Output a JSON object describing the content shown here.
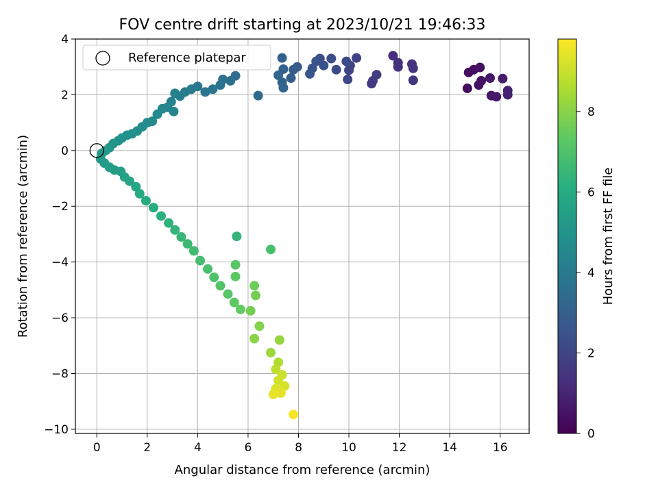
{
  "chart_data": {
    "type": "scatter",
    "title": "FOV centre drift starting at 2023/10/21 19:46:33",
    "xlabel": "Angular distance from reference (arcmin)",
    "ylabel": "Rotation from reference (arcmin)",
    "xlim": [
      -0.85,
      17.15
    ],
    "ylim": [
      -10.15,
      4.0
    ],
    "xticks": [
      0,
      2,
      4,
      6,
      8,
      10,
      12,
      14,
      16
    ],
    "yticks": [
      4,
      2,
      0,
      -2,
      -4,
      -6,
      -8,
      -10
    ],
    "xtick_labels": [
      "0",
      "2",
      "4",
      "6",
      "8",
      "10",
      "12",
      "14",
      "16"
    ],
    "ytick_labels": [
      "4",
      "2",
      "0",
      "−2",
      "−4",
      "−6",
      "−8",
      "−10"
    ],
    "grid": true,
    "legend": {
      "position": "top-left",
      "entries": [
        "Reference platepar"
      ]
    },
    "reference_point": {
      "x": 0,
      "y": 0,
      "label": "Reference platepar"
    },
    "colorbar": {
      "label": "Hours from first FF file",
      "range": [
        0,
        9.8
      ],
      "ticks": [
        0,
        2,
        4,
        6,
        8
      ],
      "tick_labels": [
        "0",
        "2",
        "4",
        "6",
        "8"
      ],
      "colormap": "viridis"
    },
    "series": [
      {
        "values": [
          {
            "x": 14.7,
            "y": 2.23,
            "h": 0.3
          },
          {
            "x": 14.75,
            "y": 2.8,
            "h": 0.35
          },
          {
            "x": 14.95,
            "y": 2.9,
            "h": 0.4
          },
          {
            "x": 15.2,
            "y": 2.98,
            "h": 0.45
          },
          {
            "x": 15.15,
            "y": 2.35,
            "h": 0.45
          },
          {
            "x": 15.25,
            "y": 2.5,
            "h": 0.5
          },
          {
            "x": 15.6,
            "y": 2.6,
            "h": 0.6
          },
          {
            "x": 15.65,
            "y": 1.97,
            "h": 0.6
          },
          {
            "x": 15.85,
            "y": 1.93,
            "h": 0.7
          },
          {
            "x": 16.1,
            "y": 2.58,
            "h": 0.8
          },
          {
            "x": 16.3,
            "y": 2.15,
            "h": 0.9
          },
          {
            "x": 16.3,
            "y": 2.0,
            "h": 0.95
          },
          {
            "x": 11.75,
            "y": 3.4,
            "h": 1.3
          },
          {
            "x": 11.95,
            "y": 3.15,
            "h": 1.35
          },
          {
            "x": 11.95,
            "y": 3.0,
            "h": 1.4
          },
          {
            "x": 12.5,
            "y": 3.1,
            "h": 1.45
          },
          {
            "x": 12.55,
            "y": 2.95,
            "h": 1.5
          },
          {
            "x": 12.55,
            "y": 2.52,
            "h": 1.5
          },
          {
            "x": 10.9,
            "y": 2.4,
            "h": 1.7
          },
          {
            "x": 10.95,
            "y": 2.5,
            "h": 1.75
          },
          {
            "x": 11.1,
            "y": 2.72,
            "h": 1.8
          },
          {
            "x": 10.3,
            "y": 3.32,
            "h": 1.9
          },
          {
            "x": 10.05,
            "y": 3.05,
            "h": 2.0
          },
          {
            "x": 10.0,
            "y": 2.88,
            "h": 2.0
          },
          {
            "x": 9.95,
            "y": 2.55,
            "h": 2.1
          },
          {
            "x": 9.5,
            "y": 2.9,
            "h": 2.2
          },
          {
            "x": 9.9,
            "y": 3.2,
            "h": 2.2
          },
          {
            "x": 9.3,
            "y": 3.3,
            "h": 2.3
          },
          {
            "x": 8.85,
            "y": 3.3,
            "h": 2.4
          },
          {
            "x": 8.7,
            "y": 3.2,
            "h": 2.5
          },
          {
            "x": 8.55,
            "y": 2.95,
            "h": 2.55
          },
          {
            "x": 8.45,
            "y": 2.75,
            "h": 2.6
          },
          {
            "x": 9.0,
            "y": 3.05,
            "h": 2.5
          },
          {
            "x": 7.95,
            "y": 3.0,
            "h": 2.8
          },
          {
            "x": 7.8,
            "y": 2.9,
            "h": 2.85
          },
          {
            "x": 7.7,
            "y": 2.6,
            "h": 2.9
          },
          {
            "x": 7.35,
            "y": 3.32,
            "h": 3.0
          },
          {
            "x": 7.4,
            "y": 2.92,
            "h": 3.1
          },
          {
            "x": 7.35,
            "y": 2.45,
            "h": 3.1
          },
          {
            "x": 7.4,
            "y": 2.25,
            "h": 3.15
          },
          {
            "x": 7.2,
            "y": 2.7,
            "h": 3.2
          },
          {
            "x": 6.4,
            "y": 1.97,
            "h": 3.4
          },
          {
            "x": 5.5,
            "y": 2.68,
            "h": 3.5
          },
          {
            "x": 5.3,
            "y": 2.5,
            "h": 3.6
          },
          {
            "x": 5.0,
            "y": 2.55,
            "h": 3.65
          },
          {
            "x": 4.9,
            "y": 2.35,
            "h": 3.7
          },
          {
            "x": 4.6,
            "y": 2.2,
            "h": 3.75
          },
          {
            "x": 4.3,
            "y": 2.1,
            "h": 3.8
          },
          {
            "x": 4.0,
            "y": 2.3,
            "h": 3.9
          },
          {
            "x": 3.75,
            "y": 2.2,
            "h": 4.0
          },
          {
            "x": 3.5,
            "y": 2.1,
            "h": 4.1
          },
          {
            "x": 3.3,
            "y": 1.95,
            "h": 4.2
          },
          {
            "x": 3.1,
            "y": 2.05,
            "h": 4.25
          },
          {
            "x": 2.95,
            "y": 1.75,
            "h": 4.3
          },
          {
            "x": 3.05,
            "y": 1.4,
            "h": 4.4
          },
          {
            "x": 2.8,
            "y": 1.55,
            "h": 4.45
          },
          {
            "x": 2.6,
            "y": 1.5,
            "h": 4.5
          },
          {
            "x": 2.4,
            "y": 1.3,
            "h": 4.55
          },
          {
            "x": 2.2,
            "y": 1.05,
            "h": 4.6
          },
          {
            "x": 2.0,
            "y": 1.0,
            "h": 4.7
          },
          {
            "x": 1.8,
            "y": 0.85,
            "h": 4.75
          },
          {
            "x": 1.6,
            "y": 0.7,
            "h": 4.8
          },
          {
            "x": 1.4,
            "y": 0.6,
            "h": 4.85
          },
          {
            "x": 1.2,
            "y": 0.55,
            "h": 4.9
          },
          {
            "x": 1.0,
            "y": 0.45,
            "h": 4.95
          },
          {
            "x": 0.85,
            "y": 0.35,
            "h": 5.0
          },
          {
            "x": 0.65,
            "y": 0.25,
            "h": 5.05
          },
          {
            "x": 0.5,
            "y": 0.1,
            "h": 5.1
          },
          {
            "x": 0.35,
            "y": 0.0,
            "h": 5.15
          },
          {
            "x": 0.2,
            "y": -0.1,
            "h": 5.2
          },
          {
            "x": 0.15,
            "y": -0.3,
            "h": 5.25
          },
          {
            "x": 0.3,
            "y": -0.45,
            "h": 5.3
          },
          {
            "x": 0.5,
            "y": -0.6,
            "h": 5.35
          },
          {
            "x": 0.7,
            "y": -0.7,
            "h": 5.4
          },
          {
            "x": 0.95,
            "y": -0.75,
            "h": 5.5
          },
          {
            "x": 1.1,
            "y": -0.95,
            "h": 5.6
          },
          {
            "x": 1.3,
            "y": -1.1,
            "h": 5.7
          },
          {
            "x": 1.55,
            "y": -1.3,
            "h": 5.8
          },
          {
            "x": 1.7,
            "y": -1.55,
            "h": 5.9
          },
          {
            "x": 1.95,
            "y": -1.8,
            "h": 6.0
          },
          {
            "x": 2.25,
            "y": -2.05,
            "h": 6.1
          },
          {
            "x": 2.55,
            "y": -2.35,
            "h": 6.2
          },
          {
            "x": 2.85,
            "y": -2.6,
            "h": 6.3
          },
          {
            "x": 3.1,
            "y": -2.85,
            "h": 6.4
          },
          {
            "x": 3.35,
            "y": -3.1,
            "h": 6.5
          },
          {
            "x": 3.6,
            "y": -3.35,
            "h": 6.6
          },
          {
            "x": 3.85,
            "y": -3.6,
            "h": 6.7
          },
          {
            "x": 4.1,
            "y": -3.95,
            "h": 6.8
          },
          {
            "x": 4.4,
            "y": -4.25,
            "h": 6.9
          },
          {
            "x": 4.65,
            "y": -4.55,
            "h": 7.0
          },
          {
            "x": 4.9,
            "y": -4.85,
            "h": 7.1
          },
          {
            "x": 5.2,
            "y": -5.15,
            "h": 7.2
          },
          {
            "x": 5.45,
            "y": -5.45,
            "h": 7.3
          },
          {
            "x": 5.7,
            "y": -5.7,
            "h": 7.4
          },
          {
            "x": 5.55,
            "y": -3.08,
            "h": 6.4
          },
          {
            "x": 6.9,
            "y": -3.55,
            "h": 6.9
          },
          {
            "x": 5.5,
            "y": -4.1,
            "h": 7.2
          },
          {
            "x": 5.5,
            "y": -4.52,
            "h": 7.3
          },
          {
            "x": 6.25,
            "y": -4.85,
            "h": 7.6
          },
          {
            "x": 6.3,
            "y": -5.2,
            "h": 7.7
          },
          {
            "x": 6.1,
            "y": -5.75,
            "h": 7.7
          },
          {
            "x": 6.45,
            "y": -6.3,
            "h": 7.9
          },
          {
            "x": 6.25,
            "y": -6.75,
            "h": 8.0
          },
          {
            "x": 7.25,
            "y": -6.8,
            "h": 8.2
          },
          {
            "x": 6.9,
            "y": -7.25,
            "h": 8.3
          },
          {
            "x": 7.2,
            "y": -7.6,
            "h": 8.6
          },
          {
            "x": 7.1,
            "y": -7.85,
            "h": 8.8
          },
          {
            "x": 7.35,
            "y": -8.05,
            "h": 9.0
          },
          {
            "x": 7.2,
            "y": -8.25,
            "h": 9.1
          },
          {
            "x": 7.45,
            "y": -8.45,
            "h": 9.2
          },
          {
            "x": 7.1,
            "y": -8.55,
            "h": 9.3
          },
          {
            "x": 7.3,
            "y": -8.7,
            "h": 9.4
          },
          {
            "x": 7.0,
            "y": -8.75,
            "h": 9.5
          },
          {
            "x": 7.8,
            "y": -9.47,
            "h": 9.7
          }
        ]
      }
    ]
  }
}
